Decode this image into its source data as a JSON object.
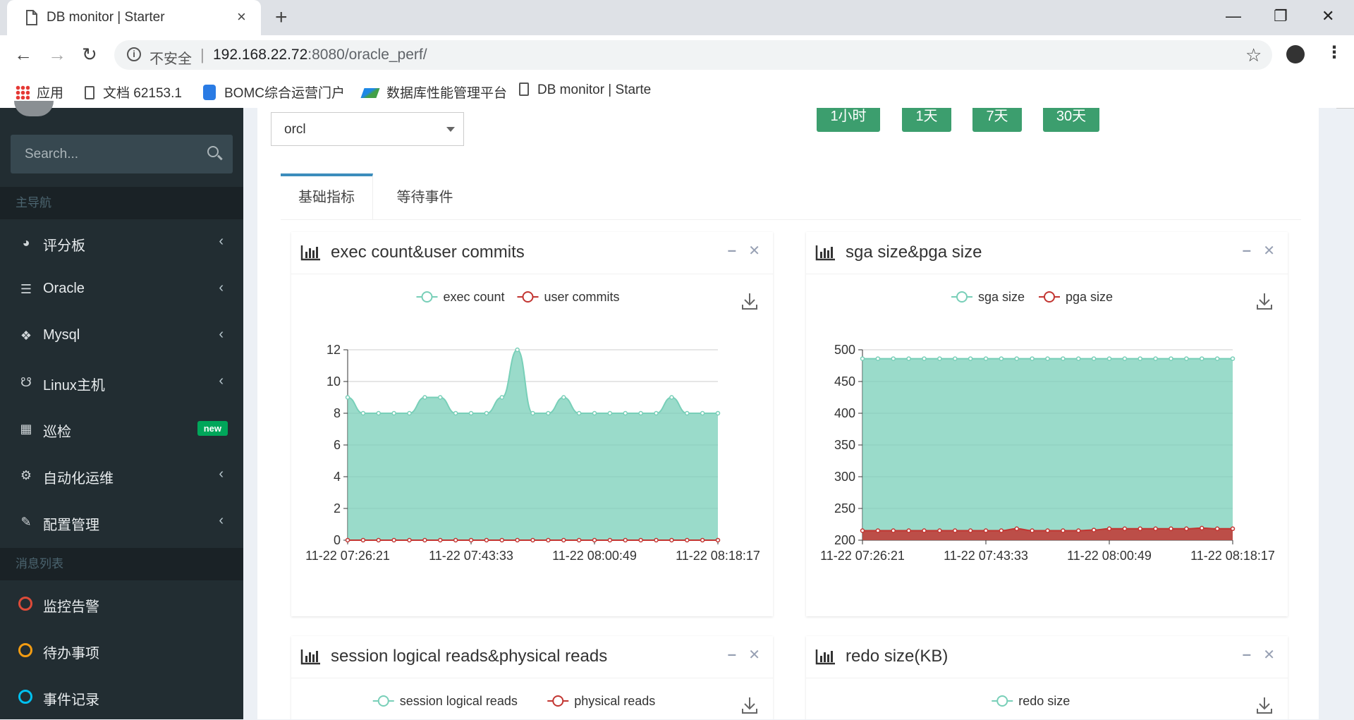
{
  "browser": {
    "tab_title": "DB monitor | Starter",
    "tab_close": "×",
    "new_tab": "+",
    "insecure_label": "不安全",
    "url_separator": "|",
    "url_host": "192.168.22.72",
    "url_rest": ":8080/oracle_perf/",
    "win_minimize": "—",
    "win_maximize": "❐",
    "win_close": "✕",
    "bookmarks": [
      {
        "label": "应用",
        "icon": "apps-grid-icon"
      },
      {
        "label": "文档 62153.1",
        "icon": "document-icon"
      },
      {
        "label": "BOMC综合运营门户",
        "icon": "bomc-icon"
      },
      {
        "label": "数据库性能管理平台",
        "icon": "db-platform-icon"
      },
      {
        "label": "DB monitor | Starte",
        "icon": "document-icon"
      }
    ]
  },
  "sidebar": {
    "search_placeholder": "Search...",
    "header_main": "主导航",
    "header_messages": "消息列表",
    "items": [
      {
        "label": "评分板",
        "icon": "dashboard-icon"
      },
      {
        "label": "Oracle",
        "icon": "database-icon"
      },
      {
        "label": "Mysql",
        "icon": "cubes-icon"
      },
      {
        "label": "Linux主机",
        "icon": "linux-icon"
      },
      {
        "label": "巡检",
        "icon": "grid-icon",
        "badge": "new"
      },
      {
        "label": "自动化运维",
        "icon": "cogs-icon"
      },
      {
        "label": "配置管理",
        "icon": "edit-icon"
      }
    ],
    "messages": [
      {
        "label": "监控告警",
        "color": "#dd4b39"
      },
      {
        "label": "待办事项",
        "color": "#f39c12"
      },
      {
        "label": "事件记录",
        "color": "#00c0ef"
      }
    ],
    "chevron": "‹"
  },
  "main": {
    "instance_select": "orcl",
    "range_buttons": [
      "1小时",
      "1天",
      "7天",
      "30天"
    ],
    "tabs": [
      "基础指标",
      "等待事件"
    ],
    "colors": {
      "series_a": "#78cfb8",
      "series_b": "#c23531",
      "range_button": "#3c9e6e",
      "tab_accent": "#3c8dbc"
    }
  },
  "boxes": [
    {
      "title": "exec count&user commits"
    },
    {
      "title": "sga size&pga size"
    },
    {
      "title": "session logical reads&physical reads"
    },
    {
      "title": "redo size(KB)"
    }
  ],
  "chart_data": [
    {
      "type": "area",
      "title": "exec count&user commits",
      "x_tick_labels": [
        "11-22 07:26:21",
        "11-22 07:43:33",
        "11-22 08:00:49",
        "11-22 08:18:17"
      ],
      "ylim": [
        0,
        12
      ],
      "y_ticks": [
        0,
        2,
        4,
        6,
        8,
        10,
        12
      ],
      "series": [
        {
          "name": "exec count",
          "values": [
            9,
            8,
            8,
            8,
            8,
            9,
            9,
            8,
            8,
            8,
            9,
            12,
            8,
            8,
            9,
            8,
            8,
            8,
            8,
            8,
            8,
            9,
            8,
            8,
            8
          ]
        },
        {
          "name": "user commits",
          "values": [
            0,
            0,
            0,
            0,
            0,
            0,
            0,
            0,
            0,
            0,
            0,
            0,
            0,
            0,
            0,
            0,
            0,
            0,
            0,
            0,
            0,
            0,
            0,
            0,
            0
          ]
        }
      ],
      "legend": "top-center",
      "grid": true
    },
    {
      "type": "area",
      "title": "sga size&pga size",
      "x_tick_labels": [
        "11-22 07:26:21",
        "11-22 07:43:33",
        "11-22 08:00:49",
        "11-22 08:18:17"
      ],
      "ylim": [
        200,
        500
      ],
      "y_ticks": [
        200,
        250,
        300,
        350,
        400,
        450,
        500
      ],
      "series": [
        {
          "name": "sga size",
          "values": [
            486,
            486,
            486,
            486,
            486,
            486,
            486,
            486,
            486,
            486,
            486,
            486,
            486,
            486,
            486,
            486,
            486,
            486,
            486,
            486,
            486,
            486,
            486,
            486,
            486
          ]
        },
        {
          "name": "pga size",
          "values": [
            215,
            215,
            215,
            215,
            215,
            215,
            215,
            215,
            215,
            215,
            218,
            215,
            215,
            215,
            215,
            216,
            218,
            218,
            218,
            218,
            218,
            218,
            219,
            218,
            218
          ]
        }
      ],
      "legend": "top-center",
      "grid": true
    },
    {
      "type": "area",
      "title": "session logical reads&physical reads",
      "series": [
        {
          "name": "session logical reads",
          "values": []
        },
        {
          "name": "physical reads",
          "values": []
        }
      ],
      "legend": "top-center"
    },
    {
      "type": "area",
      "title": "redo size(KB)",
      "series": [
        {
          "name": "redo size",
          "values": []
        }
      ],
      "legend": "top-center"
    }
  ]
}
